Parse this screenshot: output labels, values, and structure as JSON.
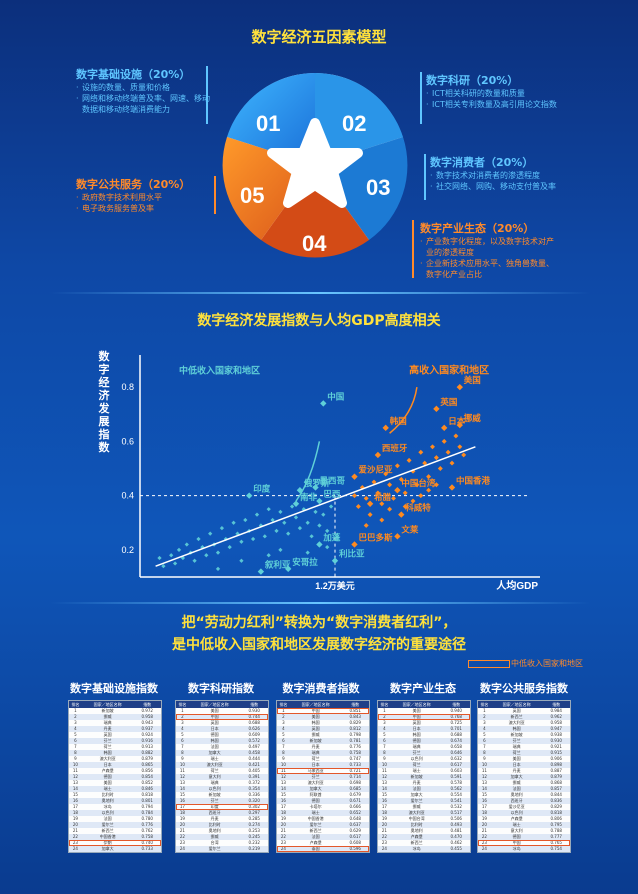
{
  "section1": {
    "title": "数字经济五因素模型",
    "segments": [
      "01",
      "02",
      "03",
      "04",
      "05"
    ],
    "factors": [
      {
        "head": "数字基础设施（20%）",
        "items": [
          "设施的数量、质量和价格",
          "网络和移动终端普及率、网速、移动数据和移动终端消费能力"
        ]
      },
      {
        "head": "数字科研（20%）",
        "items": [
          "ICT相关科研的数量和质量",
          "ICT相关专利数量及高引用论文指数"
        ]
      },
      {
        "head": "数字消费者（20%）",
        "items": [
          "数字技术对消费者的渗透程度",
          "社交网络、网购、移动支付普及率"
        ]
      },
      {
        "head": "数字产业生态（20%）",
        "items": [
          "产业数字化程度，以及数字技术对产业的渗透程度",
          "企业新技术应用水平、独角兽数量、数字化产业占比"
        ]
      },
      {
        "head": "数字公共服务（20%）",
        "items": [
          "政府数字技术利用水平",
          "电子政务服务普及率"
        ]
      }
    ]
  },
  "section2": {
    "title": "数字经济发展指数与人均GDP高度相关"
  },
  "chart_data": {
    "type": "scatter",
    "title": "",
    "ylabel": "数字经济发展指数",
    "xlabel": "人均GDP",
    "yticks": [
      "0.2",
      "0.4",
      "0.6",
      "0.8"
    ],
    "ylim": [
      0.1,
      0.9
    ],
    "xlim": [
      0,
      1
    ],
    "x_marker_label": "1.2万美元",
    "x_marker": 0.5,
    "y_marker": 0.4,
    "groups": [
      {
        "name": "中低收入国家和地区",
        "color": "#5fd0d8"
      },
      {
        "name": "高收入国家和地区",
        "color": "#ff8a1f"
      }
    ],
    "labeled_points": [
      {
        "name": "中国",
        "x": 0.47,
        "y": 0.74,
        "group": 0
      },
      {
        "name": "印度",
        "x": 0.28,
        "y": 0.4,
        "group": 0
      },
      {
        "name": "俄罗斯",
        "x": 0.41,
        "y": 0.42,
        "group": 0
      },
      {
        "name": "南非",
        "x": 0.4,
        "y": 0.37,
        "group": 0
      },
      {
        "name": "墨西哥",
        "x": 0.45,
        "y": 0.43,
        "group": 0
      },
      {
        "name": "巴西",
        "x": 0.46,
        "y": 0.38,
        "group": 0
      },
      {
        "name": "加蓬",
        "x": 0.46,
        "y": 0.22,
        "group": 0
      },
      {
        "name": "利比亚",
        "x": 0.5,
        "y": 0.16,
        "group": 0
      },
      {
        "name": "安哥拉",
        "x": 0.38,
        "y": 0.13,
        "group": 0
      },
      {
        "name": "叙利亚",
        "x": 0.31,
        "y": 0.12,
        "group": 0
      },
      {
        "name": "美国",
        "x": 0.82,
        "y": 0.8,
        "group": 1
      },
      {
        "name": "英国",
        "x": 0.76,
        "y": 0.72,
        "group": 1
      },
      {
        "name": "日本",
        "x": 0.78,
        "y": 0.65,
        "group": 1
      },
      {
        "name": "韩国",
        "x": 0.63,
        "y": 0.65,
        "group": 1
      },
      {
        "name": "挪威",
        "x": 0.82,
        "y": 0.66,
        "group": 1
      },
      {
        "name": "西班牙",
        "x": 0.61,
        "y": 0.55,
        "group": 1
      },
      {
        "name": "爱沙尼亚",
        "x": 0.55,
        "y": 0.47,
        "group": 1
      },
      {
        "name": "中国台湾",
        "x": 0.66,
        "y": 0.42,
        "group": 1
      },
      {
        "name": "中国香港",
        "x": 0.8,
        "y": 0.43,
        "group": 1
      },
      {
        "name": "希腊",
        "x": 0.59,
        "y": 0.37,
        "group": 1
      },
      {
        "name": "科威特",
        "x": 0.67,
        "y": 0.33,
        "group": 1
      },
      {
        "name": "文莱",
        "x": 0.66,
        "y": 0.25,
        "group": 1
      },
      {
        "name": "巴巴多斯",
        "x": 0.55,
        "y": 0.22,
        "group": 1
      }
    ],
    "cloud_low": [
      [
        0.05,
        0.17
      ],
      [
        0.06,
        0.14
      ],
      [
        0.08,
        0.18
      ],
      [
        0.09,
        0.15
      ],
      [
        0.1,
        0.2
      ],
      [
        0.11,
        0.17
      ],
      [
        0.12,
        0.22
      ],
      [
        0.13,
        0.19
      ],
      [
        0.14,
        0.16
      ],
      [
        0.15,
        0.24
      ],
      [
        0.16,
        0.21
      ],
      [
        0.17,
        0.18
      ],
      [
        0.18,
        0.26
      ],
      [
        0.19,
        0.22
      ],
      [
        0.2,
        0.19
      ],
      [
        0.21,
        0.28
      ],
      [
        0.22,
        0.24
      ],
      [
        0.23,
        0.21
      ],
      [
        0.24,
        0.3
      ],
      [
        0.25,
        0.26
      ],
      [
        0.26,
        0.23
      ],
      [
        0.27,
        0.31
      ],
      [
        0.28,
        0.27
      ],
      [
        0.29,
        0.24
      ],
      [
        0.3,
        0.33
      ],
      [
        0.31,
        0.29
      ],
      [
        0.32,
        0.25
      ],
      [
        0.33,
        0.35
      ],
      [
        0.34,
        0.31
      ],
      [
        0.35,
        0.27
      ],
      [
        0.36,
        0.34
      ],
      [
        0.37,
        0.3
      ],
      [
        0.38,
        0.26
      ],
      [
        0.39,
        0.36
      ],
      [
        0.4,
        0.32
      ],
      [
        0.41,
        0.28
      ],
      [
        0.42,
        0.35
      ],
      [
        0.43,
        0.3
      ],
      [
        0.44,
        0.25
      ],
      [
        0.45,
        0.34
      ],
      [
        0.46,
        0.29
      ],
      [
        0.47,
        0.33
      ],
      [
        0.48,
        0.27
      ],
      [
        0.49,
        0.36
      ],
      [
        0.2,
        0.13
      ],
      [
        0.26,
        0.16
      ],
      [
        0.33,
        0.18
      ],
      [
        0.36,
        0.2
      ],
      [
        0.43,
        0.19
      ],
      [
        0.48,
        0.21
      ]
    ],
    "cloud_high": [
      [
        0.55,
        0.4
      ],
      [
        0.56,
        0.36
      ],
      [
        0.57,
        0.43
      ],
      [
        0.58,
        0.39
      ],
      [
        0.59,
        0.33
      ],
      [
        0.6,
        0.45
      ],
      [
        0.61,
        0.41
      ],
      [
        0.62,
        0.37
      ],
      [
        0.63,
        0.48
      ],
      [
        0.64,
        0.44
      ],
      [
        0.65,
        0.39
      ],
      [
        0.66,
        0.51
      ],
      [
        0.67,
        0.46
      ],
      [
        0.68,
        0.41
      ],
      [
        0.69,
        0.53
      ],
      [
        0.7,
        0.49
      ],
      [
        0.71,
        0.44
      ],
      [
        0.72,
        0.56
      ],
      [
        0.73,
        0.52
      ],
      [
        0.74,
        0.47
      ],
      [
        0.75,
        0.58
      ],
      [
        0.76,
        0.54
      ],
      [
        0.77,
        0.5
      ],
      [
        0.78,
        0.6
      ],
      [
        0.79,
        0.56
      ],
      [
        0.8,
        0.52
      ],
      [
        0.81,
        0.62
      ],
      [
        0.82,
        0.58
      ],
      [
        0.83,
        0.55
      ],
      [
        0.58,
        0.29
      ],
      [
        0.62,
        0.31
      ],
      [
        0.64,
        0.35
      ],
      [
        0.68,
        0.36
      ],
      [
        0.7,
        0.38
      ],
      [
        0.72,
        0.4
      ],
      [
        0.74,
        0.42
      ],
      [
        0.76,
        0.44
      ]
    ]
  },
  "section3": {
    "title_line1": "把“劳动力红利”转换为“数字消费者红利”，",
    "title_line2": "是中低收入国家和地区发展数字经济的重要途径",
    "legend": "中低收入国家和地区"
  },
  "tables": [
    {
      "title": "数字基础设施指数",
      "hl": [
        22
      ],
      "header": [
        "排名",
        "国家／地区名称",
        "指数"
      ],
      "rows": [
        [
          "1",
          "新加坡",
          "0.972"
        ],
        [
          "2",
          "挪威",
          "0.958"
        ],
        [
          "3",
          "瑞典",
          "0.943"
        ],
        [
          "4",
          "丹麦",
          "0.937"
        ],
        [
          "5",
          "英国",
          "0.924"
        ],
        [
          "6",
          "芬兰",
          "0.916"
        ],
        [
          "7",
          "荷兰",
          "0.913"
        ],
        [
          "8",
          "韩国",
          "0.882"
        ],
        [
          "9",
          "澳大利亚",
          "0.879"
        ],
        [
          "10",
          "日本",
          "0.865"
        ],
        [
          "11",
          "卢森堡",
          "0.856"
        ],
        [
          "12",
          "德国",
          "0.854"
        ],
        [
          "13",
          "美国",
          "0.852"
        ],
        [
          "14",
          "瑞士",
          "0.846"
        ],
        [
          "15",
          "比利时",
          "0.818"
        ],
        [
          "16",
          "奥地利",
          "0.801"
        ],
        [
          "17",
          "冰岛",
          "0.794"
        ],
        [
          "18",
          "以色列",
          "0.784"
        ],
        [
          "19",
          "法国",
          "0.780"
        ],
        [
          "20",
          "爱尔兰",
          "0.776"
        ],
        [
          "21",
          "新西兰",
          "0.762"
        ],
        [
          "22",
          "中国香港",
          "0.758"
        ],
        [
          "23",
          "伊朗",
          "0.740"
        ],
        [
          "24",
          "加拿大",
          "0.733"
        ]
      ]
    },
    {
      "title": "数字科研指数",
      "hl": [
        1,
        16
      ],
      "header": [
        "排名",
        "国家／地区名称",
        "指数"
      ],
      "rows": [
        [
          "1",
          "美国",
          "0.930"
        ],
        [
          "2",
          "中国",
          "0.744"
        ],
        [
          "3",
          "英国",
          "0.688"
        ],
        [
          "4",
          "日本",
          "0.626"
        ],
        [
          "5",
          "德国",
          "0.609"
        ],
        [
          "6",
          "韩国",
          "0.572"
        ],
        [
          "7",
          "法国",
          "0.497"
        ],
        [
          "8",
          "加拿大",
          "0.458"
        ],
        [
          "9",
          "瑞士",
          "0.444"
        ],
        [
          "10",
          "澳大利亚",
          "0.421"
        ],
        [
          "11",
          "荷兰",
          "0.405"
        ],
        [
          "12",
          "意大利",
          "0.391"
        ],
        [
          "13",
          "瑞典",
          "0.372"
        ],
        [
          "14",
          "以色列",
          "0.354"
        ],
        [
          "15",
          "新加坡",
          "0.336"
        ],
        [
          "16",
          "芬兰",
          "0.320"
        ],
        [
          "17",
          "印度",
          "0.302"
        ],
        [
          "18",
          "西班牙",
          "0.297"
        ],
        [
          "19",
          "丹麦",
          "0.285"
        ],
        [
          "20",
          "比利时",
          "0.274"
        ],
        [
          "21",
          "奥地利",
          "0.253"
        ],
        [
          "22",
          "挪威",
          "0.245"
        ],
        [
          "23",
          "台湾",
          "0.232"
        ],
        [
          "24",
          "爱尔兰",
          "0.219"
        ]
      ]
    },
    {
      "title": "数字消费者指数",
      "hl": [
        0,
        10,
        23
      ],
      "header": [
        "排名",
        "国家／地区名称",
        "指数"
      ],
      "rows": [
        [
          "1",
          "中国",
          "0.851"
        ],
        [
          "2",
          "美国",
          "0.843"
        ],
        [
          "3",
          "韩国",
          "0.829"
        ],
        [
          "4",
          "英国",
          "0.812"
        ],
        [
          "5",
          "挪威",
          "0.798"
        ],
        [
          "6",
          "新加坡",
          "0.781"
        ],
        [
          "7",
          "丹麦",
          "0.776"
        ],
        [
          "8",
          "瑞典",
          "0.758"
        ],
        [
          "9",
          "荷兰",
          "0.747"
        ],
        [
          "10",
          "日本",
          "0.733"
        ],
        [
          "11",
          "马来西亚",
          "0.721"
        ],
        [
          "12",
          "芬兰",
          "0.714"
        ],
        [
          "13",
          "澳大利亚",
          "0.698"
        ],
        [
          "14",
          "加拿大",
          "0.685"
        ],
        [
          "15",
          "阿联酋",
          "0.679"
        ],
        [
          "16",
          "德国",
          "0.671"
        ],
        [
          "17",
          "卡塔尔",
          "0.666"
        ],
        [
          "18",
          "瑞士",
          "0.652"
        ],
        [
          "19",
          "中国香港",
          "0.648"
        ],
        [
          "20",
          "爱尔兰",
          "0.637"
        ],
        [
          "21",
          "新西兰",
          "0.629"
        ],
        [
          "22",
          "法国",
          "0.617"
        ],
        [
          "23",
          "卢森堡",
          "0.608"
        ],
        [
          "24",
          "泰国",
          "0.596"
        ]
      ]
    },
    {
      "title": "数字产业生态",
      "hl": [
        1
      ],
      "header": [
        "排名",
        "国家／地区名称",
        "指数"
      ],
      "rows": [
        [
          "1",
          "美国",
          "0.940"
        ],
        [
          "2",
          "中国",
          "0.768"
        ],
        [
          "3",
          "英国",
          "0.725"
        ],
        [
          "4",
          "日本",
          "0.701"
        ],
        [
          "5",
          "韩国",
          "0.688"
        ],
        [
          "6",
          "德国",
          "0.674"
        ],
        [
          "7",
          "瑞典",
          "0.658"
        ],
        [
          "8",
          "芬兰",
          "0.646"
        ],
        [
          "9",
          "以色列",
          "0.632"
        ],
        [
          "10",
          "荷兰",
          "0.617"
        ],
        [
          "11",
          "瑞士",
          "0.603"
        ],
        [
          "12",
          "新加坡",
          "0.591"
        ],
        [
          "13",
          "丹麦",
          "0.578"
        ],
        [
          "14",
          "法国",
          "0.562"
        ],
        [
          "15",
          "加拿大",
          "0.554"
        ],
        [
          "16",
          "爱尔兰",
          "0.541"
        ],
        [
          "17",
          "挪威",
          "0.532"
        ],
        [
          "18",
          "澳大利亚",
          "0.517"
        ],
        [
          "19",
          "中国台湾",
          "0.506"
        ],
        [
          "20",
          "比利时",
          "0.493"
        ],
        [
          "21",
          "奥地利",
          "0.481"
        ],
        [
          "22",
          "卢森堡",
          "0.470"
        ],
        [
          "23",
          "新西兰",
          "0.462"
        ],
        [
          "24",
          "冰岛",
          "0.455"
        ]
      ]
    },
    {
      "title": "数字公共服务指数",
      "hl": [
        22
      ],
      "header": [
        "排名",
        "国家／地区名称",
        "指数"
      ],
      "rows": [
        [
          "1",
          "英国",
          "0.984"
        ],
        [
          "2",
          "新西兰",
          "0.962"
        ],
        [
          "3",
          "澳大利亚",
          "0.958"
        ],
        [
          "4",
          "韩国",
          "0.947"
        ],
        [
          "5",
          "新加坡",
          "0.938"
        ],
        [
          "6",
          "芬兰",
          "0.930"
        ],
        [
          "7",
          "瑞典",
          "0.921"
        ],
        [
          "8",
          "荷兰",
          "0.915"
        ],
        [
          "9",
          "美国",
          "0.906"
        ],
        [
          "10",
          "日本",
          "0.898"
        ],
        [
          "11",
          "丹麦",
          "0.887"
        ],
        [
          "12",
          "加拿大",
          "0.879"
        ],
        [
          "13",
          "挪威",
          "0.868"
        ],
        [
          "14",
          "法国",
          "0.857"
        ],
        [
          "15",
          "奥地利",
          "0.844"
        ],
        [
          "16",
          "西班牙",
          "0.836"
        ],
        [
          "17",
          "爱沙尼亚",
          "0.829"
        ],
        [
          "18",
          "以色列",
          "0.818"
        ],
        [
          "19",
          "卢森堡",
          "0.806"
        ],
        [
          "20",
          "瑞士",
          "0.795"
        ],
        [
          "21",
          "意大利",
          "0.788"
        ],
        [
          "22",
          "德国",
          "0.777"
        ],
        [
          "23",
          "中国",
          "0.765"
        ],
        [
          "24",
          "冰岛",
          "0.754"
        ]
      ]
    }
  ]
}
